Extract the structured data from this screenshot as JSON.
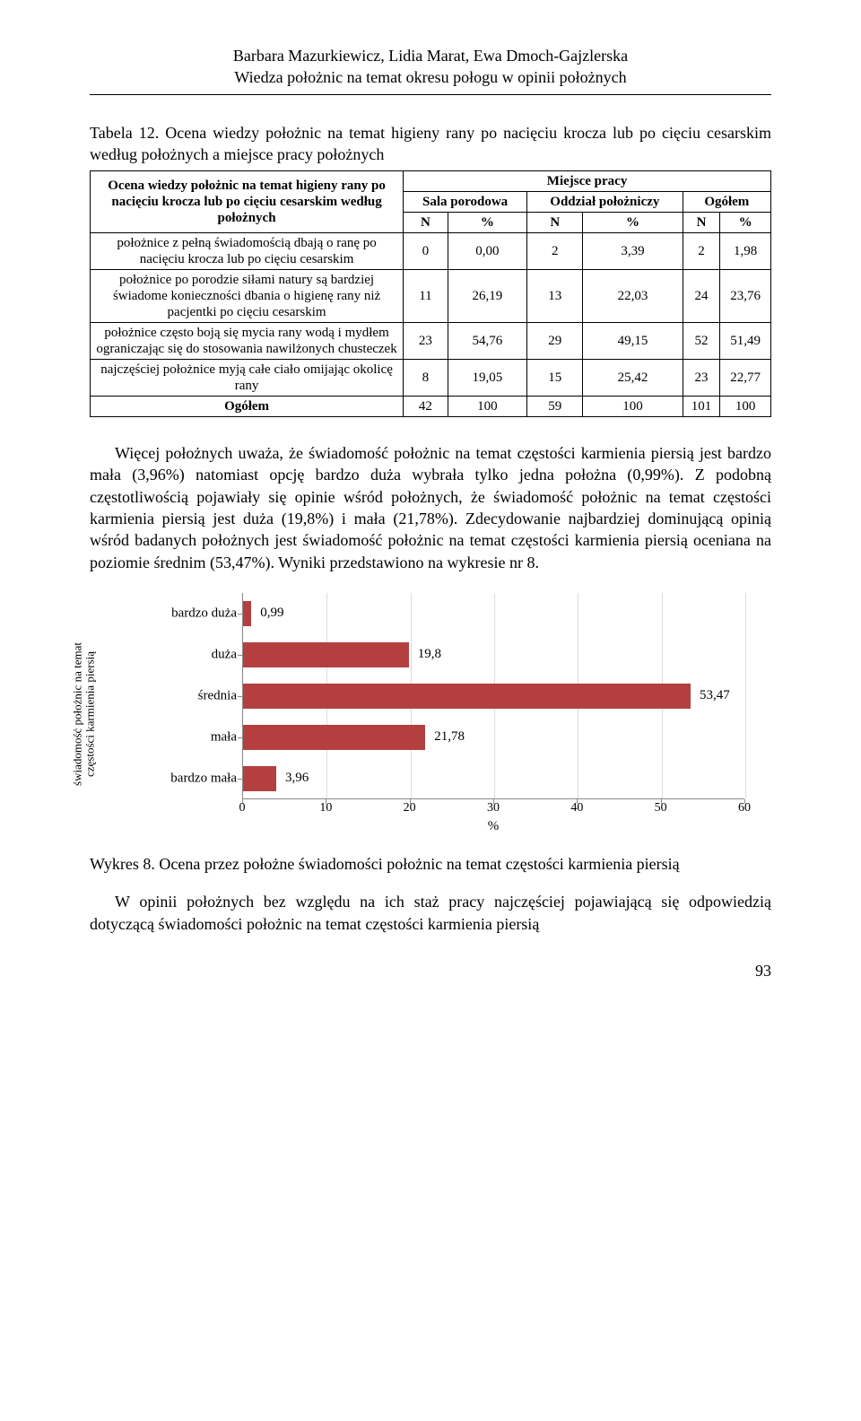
{
  "header": {
    "authors": "Barbara Mazurkiewicz, Lidia Marat, Ewa Dmoch-Gajzlerska",
    "title": "Wiedza położnic na temat okresu połogu w opinii położnych"
  },
  "table": {
    "caption": "Tabela 12. Ocena wiedzy położnic na temat higieny rany po nacięciu krocza lub po cięciu cesarskim według położnych a miejsce pracy położnych",
    "left_header": "Ocena wiedzy położnic na temat higieny rany po nacięciu krocza lub po cięciu cesarskim według położnych",
    "top_header": "Miejsce pracy",
    "col1": "Sala porodowa",
    "col2": "Oddział położniczy",
    "col3": "Ogółem",
    "sub_n": "N",
    "sub_pct": "%",
    "rows": [
      {
        "label": "położnice z pełną świadomością dbają o ranę po nacięciu krocza lub po cięciu cesarskim",
        "n1": "0",
        "p1": "0,00",
        "n2": "2",
        "p2": "3,39",
        "n3": "2",
        "p3": "1,98"
      },
      {
        "label": "położnice po porodzie siłami natury są bardziej świadome konieczności dbania o higienę rany niż pacjentki po cięciu cesarskim",
        "n1": "11",
        "p1": "26,19",
        "n2": "13",
        "p2": "22,03",
        "n3": "24",
        "p3": "23,76"
      },
      {
        "label": "położnice często boją się mycia rany wodą i mydłem ograniczając się do stosowania nawilżonych chusteczek",
        "n1": "23",
        "p1": "54,76",
        "n2": "29",
        "p2": "49,15",
        "n3": "52",
        "p3": "51,49"
      },
      {
        "label": "najczęściej położnice myją całe ciało omijając okolicę rany",
        "n1": "8",
        "p1": "19,05",
        "n2": "15",
        "p2": "25,42",
        "n3": "23",
        "p3": "22,77"
      }
    ],
    "total_label": "Ogółem",
    "total": {
      "n1": "42",
      "p1": "100",
      "n2": "59",
      "p2": "100",
      "n3": "101",
      "p3": "100"
    }
  },
  "paragraph1": "Więcej położnych uważa, że świadomość położnic na temat częstości karmienia piersią jest bardzo mała (3,96%) natomiast opcję bardzo duża wybrała tylko jedna położna (0,99%). Z podobną częstotliwością pojawiały się opinie wśród położnych, że świadomość położnic na temat częstości karmienia piersią jest duża (19,8%) i mała (21,78%). Zdecydowanie najbardziej dominującą opinią wśród badanych położnych jest świadomość położnic na temat częstości karmienia piersią oceniana na poziomie średnim (53,47%). Wyniki przedstawiono na wykresie nr 8.",
  "chart": {
    "y_axis_label_line1": "świadomość położnic na temat",
    "y_axis_label_line2": "częstości karmienia piersią",
    "x_axis_label": "%",
    "xlim": 60,
    "xticks": [
      0,
      10,
      20,
      30,
      40,
      50,
      60
    ],
    "bar_color": "#b33f3f",
    "categories": [
      {
        "label": "bardzo duża",
        "value": 0.99,
        "display": "0,99"
      },
      {
        "label": "duża",
        "value": 19.8,
        "display": "19,8"
      },
      {
        "label": "średnia",
        "value": 53.47,
        "display": "53,47"
      },
      {
        "label": "mała",
        "value": 21.78,
        "display": "21,78"
      },
      {
        "label": "bardzo mała",
        "value": 3.96,
        "display": "3,96"
      }
    ]
  },
  "figure_caption": "Wykres 8. Ocena przez położne świadomości położnic na temat częstości karmienia piersią",
  "paragraph2": "W opinii położnych bez względu na ich staż pracy najczęściej pojawiającą się odpowiedzią dotyczącą świadomości położnic na temat częstości karmienia piersią",
  "page_number": "93"
}
